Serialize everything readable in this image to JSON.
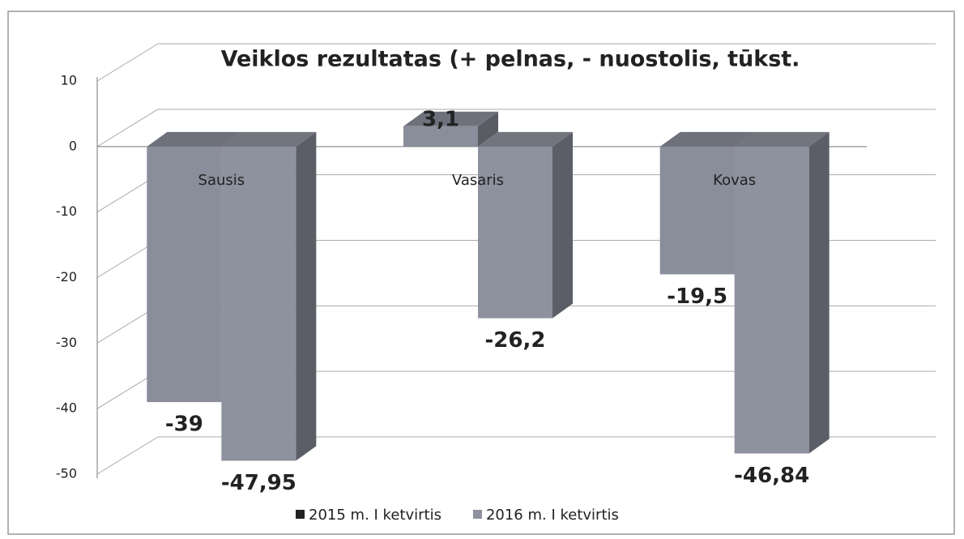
{
  "chart_data": {
    "type": "bar",
    "title": "Veiklos rezultatas (+ pelnas, - nuostolis, tūkst.",
    "categories": [
      "Sausis",
      "Vasaris",
      "Kovas"
    ],
    "series": [
      {
        "name": "2015 m. I ketvirtis",
        "color": "#8a8d9a",
        "values": [
          -39,
          3.1,
          -19.5
        ],
        "value_labels": [
          "-39",
          "3,1",
          "-19,5"
        ]
      },
      {
        "name": "2016 m. I ketvirtis",
        "color": "#8e919e",
        "values": [
          -47.95,
          -26.2,
          -46.84
        ],
        "value_labels": [
          "-47,95",
          "-26,2",
          "-46,84"
        ]
      }
    ],
    "ylim": [
      -50,
      10
    ],
    "yticks": [
      10,
      0,
      -10,
      -20,
      -30,
      -40,
      -50
    ],
    "grid": true,
    "legend": "bottom"
  }
}
